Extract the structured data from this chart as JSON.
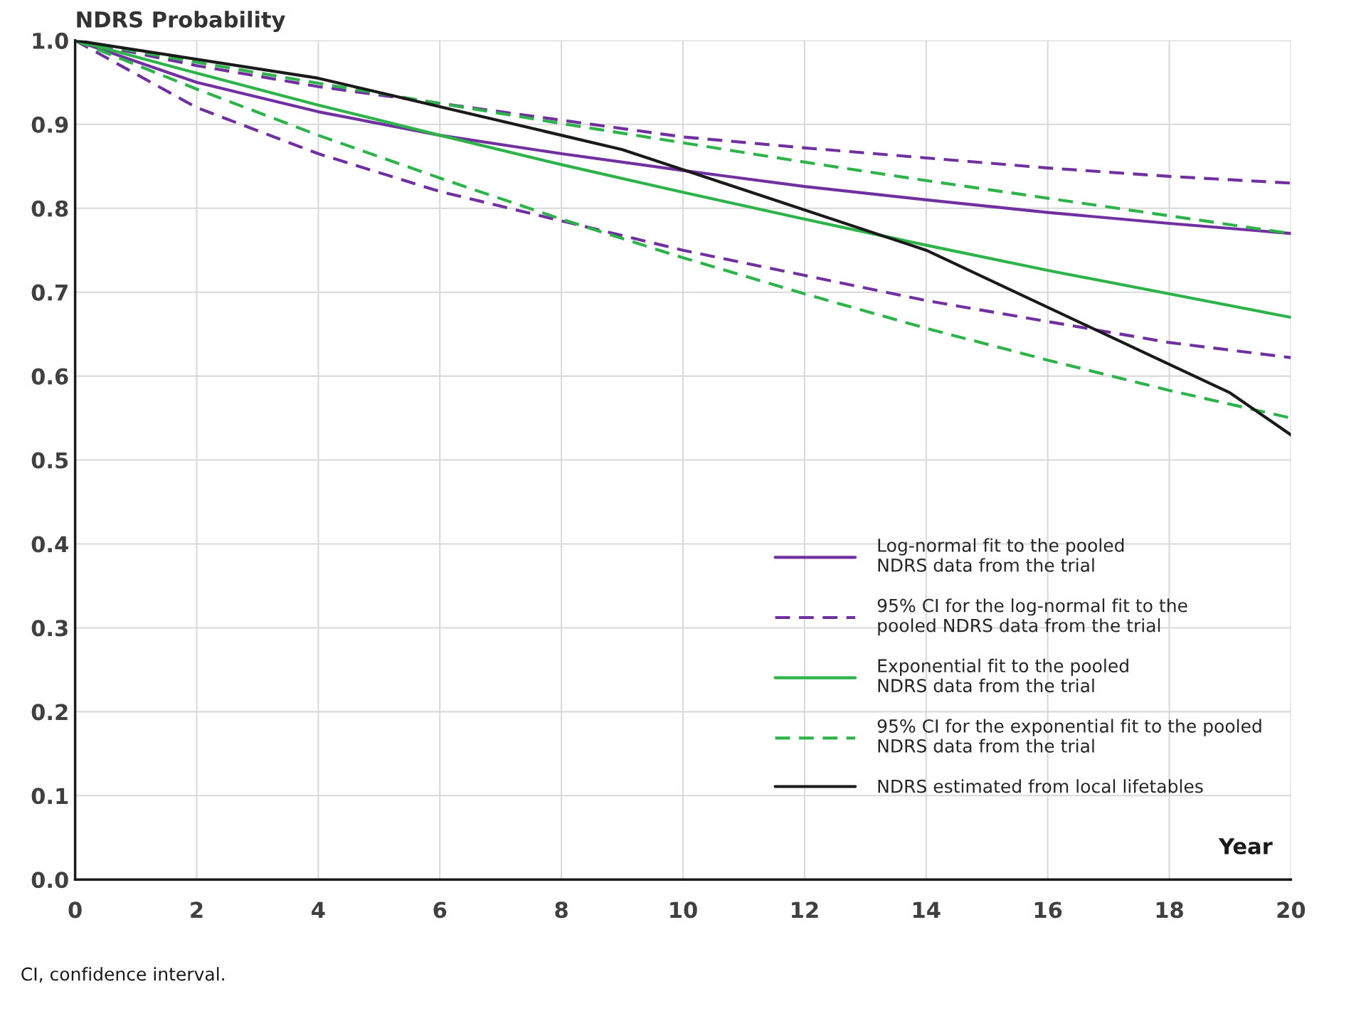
{
  "chart_data": {
    "type": "line",
    "ylabel": "NDRS Probability",
    "xlabel": "Year",
    "x": [
      0,
      2,
      4,
      6,
      8,
      10,
      12,
      14,
      16,
      18,
      20
    ],
    "series": [
      {
        "name": "Log-normal fit to the pooled\nNDRS data from the trial",
        "color": "#7030a0",
        "line_style": "solid",
        "values": [
          1.0,
          0.95,
          0.915,
          0.887,
          0.865,
          0.845,
          0.826,
          0.81,
          0.795,
          0.782,
          0.77
        ]
      },
      {
        "name": "95% CI for the log-normal fit to the\npooled NDRS data from the trial",
        "color": "#7030a0",
        "line_style": "dashed",
        "values": [
          1.0,
          0.97,
          0.945,
          0.925,
          0.905,
          0.885,
          0.872,
          0.86,
          0.848,
          0.838,
          0.83
        ]
      },
      {
        "color": "#7030a0",
        "line_style": "dashed",
        "values": [
          1.0,
          0.92,
          0.865,
          0.82,
          0.785,
          0.75,
          0.72,
          0.69,
          0.665,
          0.64,
          0.622
        ]
      },
      {
        "name": "Exponential fit to the pooled\nNDRS data from the trial",
        "color": "#2db34a",
        "line_style": "solid",
        "values": [
          1.0,
          0.961,
          0.923,
          0.887,
          0.852,
          0.819,
          0.787,
          0.756,
          0.726,
          0.698,
          0.67
        ]
      },
      {
        "name": "95% CI for the exponential fit to the pooled\nNDRS data from the trial",
        "color": "#2db34a",
        "line_style": "dashed",
        "values": [
          1.0,
          0.974,
          0.949,
          0.925,
          0.901,
          0.878,
          0.855,
          0.833,
          0.812,
          0.791,
          0.77
        ]
      },
      {
        "color": "#2db34a",
        "line_style": "dashed",
        "values": [
          1.0,
          0.942,
          0.887,
          0.836,
          0.787,
          0.741,
          0.698,
          0.657,
          0.619,
          0.583,
          0.55
        ]
      },
      {
        "name": "NDRS estimated from local lifetables",
        "color": "#1a1a1a",
        "line_style": "solid",
        "x": [
          0,
          4,
          9,
          14,
          19,
          20
        ],
        "values": [
          1.0,
          0.955,
          0.87,
          0.75,
          0.58,
          0.53
        ]
      }
    ],
    "xlim": [
      0,
      20
    ],
    "ylim": [
      0,
      1.0
    ],
    "xticks": [
      0,
      2,
      4,
      6,
      8,
      10,
      12,
      14,
      16,
      18,
      20
    ],
    "yticks": [
      {
        "value": 0,
        "label": "0.0"
      },
      {
        "value": 0.1,
        "label": "0.1"
      },
      {
        "value": 0.2,
        "label": "0.2"
      },
      {
        "value": 0.3,
        "label": "0.3"
      },
      {
        "value": 0.4,
        "label": "0.4"
      },
      {
        "value": 0.5,
        "label": "0.5"
      },
      {
        "value": 0.6,
        "label": "0.6"
      },
      {
        "value": 0.7,
        "label": "0.7"
      },
      {
        "value": 0.8,
        "label": "0.8"
      },
      {
        "value": 0.9,
        "label": "0.9"
      },
      {
        "value": 1.0,
        "label": "1.0"
      }
    ],
    "grid": true,
    "legend": "bottom right",
    "marker": "none",
    "annotations": [
      "CI, confidence interval."
    ]
  }
}
